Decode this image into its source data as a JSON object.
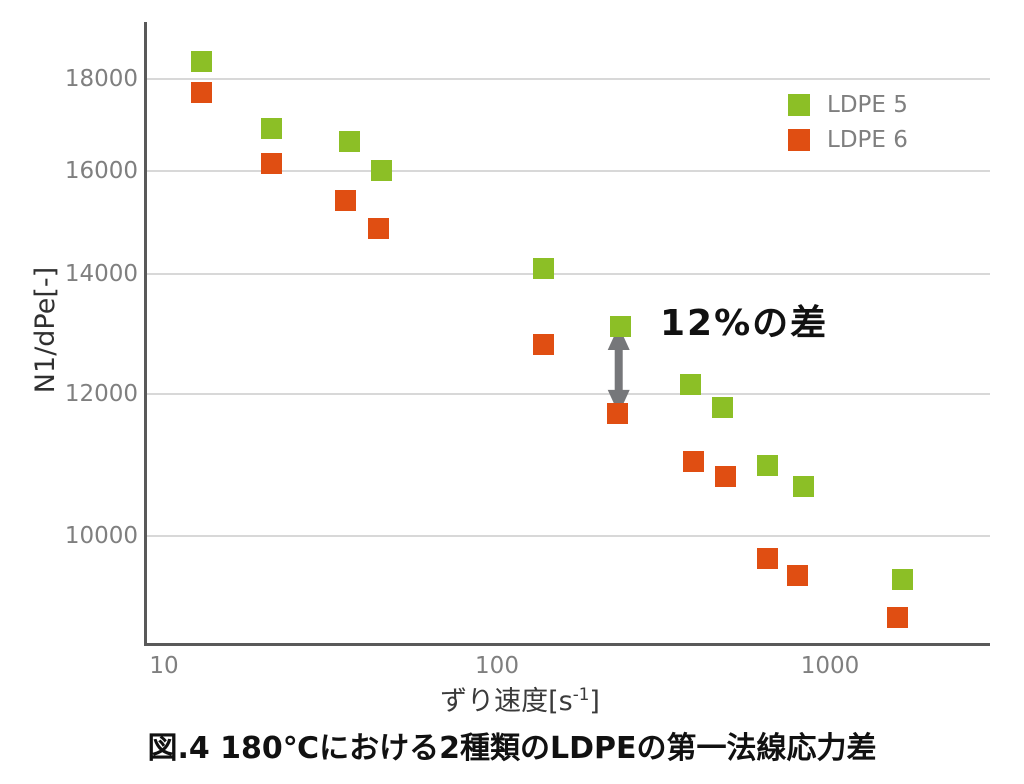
{
  "chart_data": {
    "type": "scatter",
    "marker": "square",
    "x_scale": "log",
    "y_scale": "log",
    "xlabel_parts": {
      "main": "ずり速度[s",
      "sup": "-1",
      "close": "]"
    },
    "ylabel": "N1/dPe[-]",
    "xlim": [
      9,
      2900
    ],
    "ylim": [
      8700,
      19400
    ],
    "x_ticks": [
      "10",
      "100",
      "1000"
    ],
    "y_ticks": [
      "10000",
      "12000",
      "14000",
      "16000",
      "18000"
    ],
    "grid": "horizontal",
    "legend_position": "top-right",
    "series": [
      {
        "name": "LDPE 5",
        "color": "#8CBF26",
        "points": [
          [
            13,
            18400
          ],
          [
            21,
            16900
          ],
          [
            36,
            16600
          ],
          [
            45,
            16000
          ],
          [
            138,
            14100
          ],
          [
            235,
            13100
          ],
          [
            380,
            12150
          ],
          [
            475,
            11800
          ],
          [
            650,
            10950
          ],
          [
            835,
            10650
          ],
          [
            1650,
            9450
          ]
        ]
      },
      {
        "name": "LDPE 6",
        "color": "#E04E12",
        "points": [
          [
            13,
            17700
          ],
          [
            21,
            16150
          ],
          [
            35,
            15400
          ],
          [
            44,
            14850
          ],
          [
            138,
            12800
          ],
          [
            230,
            11700
          ],
          [
            390,
            11000
          ],
          [
            485,
            10800
          ],
          [
            650,
            9720
          ],
          [
            800,
            9500
          ],
          [
            1590,
            9000
          ]
        ]
      }
    ],
    "annotation": {
      "text": "12%の差",
      "arrow_x": 232,
      "arrow_from_y": 13100,
      "arrow_to_y": 11700
    }
  },
  "caption": "図.4 180℃における2種類のLDPEの第一法線応力差",
  "colors": {
    "ldpe5_green": "#8CBF26",
    "ldpe6_orange": "#E04E12",
    "gridline": "#D8D8D8",
    "axis_line": "#595959",
    "tick_label": "#7F7F7F",
    "axis_title": "#303030",
    "annotation_text": "#111111",
    "arrow": "#76777A",
    "background": "#FFFFFF"
  }
}
